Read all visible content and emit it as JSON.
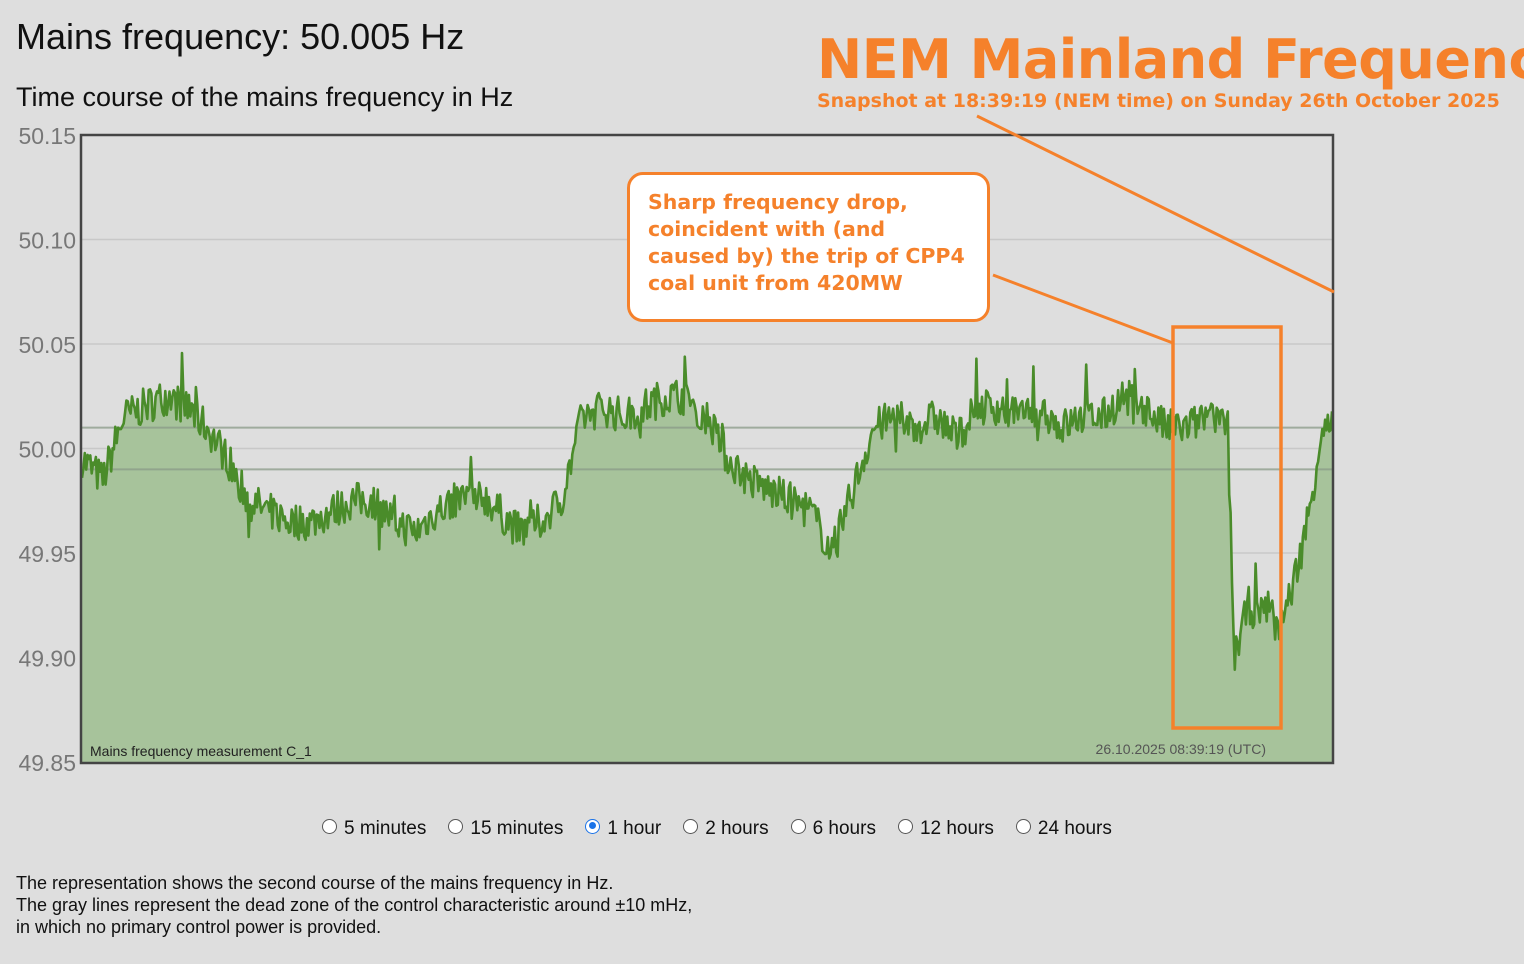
{
  "header": {
    "title": "Mains frequency: 50.005 Hz",
    "subtitle": "Time course of the mains frequency in Hz"
  },
  "annotation": {
    "headline": "NEM Mainland Frequency",
    "snapshot": "Snapshot at 18:39:19 (NEM time) on Sunday 26th October 2025",
    "callout": "Sharp frequency drop, coincident with (and caused by) the trip of CPP4 coal unit from 420MW",
    "color": "#f5812b"
  },
  "chart_data": {
    "type": "area",
    "series_label": "Mains frequency measurement C_1",
    "timestamp": "26.10.2025 08:39:19 (UTC)",
    "ylim": [
      49.85,
      50.15
    ],
    "yticks": [
      "50.15",
      "50.10",
      "50.05",
      "50.00",
      "49.95",
      "49.90",
      "49.85"
    ],
    "dead_zone": [
      49.99,
      50.01
    ],
    "line_color": "#4a8c2a",
    "fill_color": "#a7c39b",
    "grid": true,
    "x_minutes": [
      0,
      1,
      2,
      3,
      4,
      5,
      6,
      7,
      8,
      9,
      10,
      11,
      12,
      13,
      14,
      15,
      16,
      17,
      18,
      19,
      20,
      21,
      22,
      23,
      24,
      25,
      26,
      27,
      28,
      29,
      30,
      31,
      32,
      33,
      34,
      35,
      36,
      37,
      38,
      39,
      40,
      41,
      42,
      43,
      44,
      45,
      46,
      47,
      48,
      49,
      50,
      51,
      52,
      53,
      54,
      55,
      55.3,
      56,
      56.5,
      57,
      57.5,
      58,
      58.5,
      59,
      59.5,
      60
    ],
    "values": [
      49.995,
      49.985,
      50.015,
      50.02,
      50.025,
      50.02,
      50.01,
      49.995,
      49.975,
      49.97,
      49.965,
      49.965,
      49.97,
      49.975,
      49.975,
      49.965,
      49.96,
      49.97,
      49.975,
      49.98,
      49.97,
      49.96,
      49.965,
      49.975,
      50.015,
      50.02,
      50.015,
      50.02,
      50.025,
      50.025,
      50.015,
      49.995,
      49.985,
      49.98,
      49.975,
      49.97,
      49.95,
      49.98,
      50.01,
      50.015,
      50.01,
      50.015,
      50.005,
      50.02,
      50.02,
      50.015,
      50.02,
      50.01,
      50.015,
      50.015,
      50.025,
      50.02,
      50.01,
      50.01,
      50.015,
      50.01,
      49.9,
      49.925,
      49.92,
      49.925,
      49.915,
      49.93,
      49.95,
      49.975,
      50.01,
      50.01
    ]
  },
  "timeframes": {
    "options": [
      "5 minutes",
      "15 minutes",
      "1 hour",
      "2 hours",
      "6 hours",
      "12 hours",
      "24 hours"
    ],
    "selected": "1 hour"
  },
  "description": [
    "The representation shows the second course of the mains frequency in Hz.",
    "The gray lines represent the dead zone of the control characteristic around ±10 mHz,",
    "in which no primary control power is provided."
  ]
}
